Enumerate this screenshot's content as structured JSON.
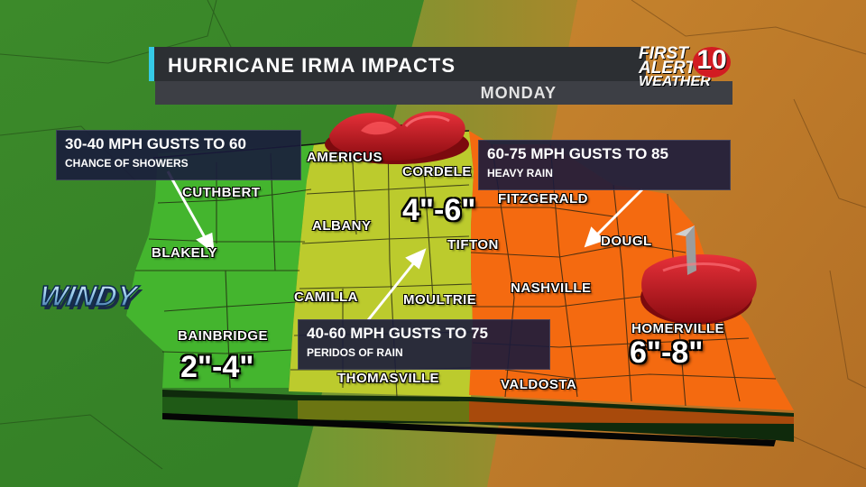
{
  "title": "HURRICANE IRMA IMPACTS",
  "subtitle": "MONDAY",
  "logo": {
    "line1": "FIRST",
    "line2": "ALERT",
    "line3": "WEATHER",
    "number": "10"
  },
  "colors": {
    "green_zone": "#3fb22c",
    "yellow_zone": "#b9c92c",
    "orange_zone": "#f36b10",
    "panel": "#1a1b3c",
    "accent": "#35c9e6",
    "hurricane_red": "#c8151b"
  },
  "cities": {
    "americus": "AMERICUS",
    "cordele": "CORDELE",
    "cuthbert": "CUTHBERT",
    "fitzgerald": "FITZGERALD",
    "albany": "ALBANY",
    "blakely": "BLAKELY",
    "tifton": "TIFTON",
    "douglas": "DOUGL",
    "nashville": "NASHVILLE",
    "camilla": "CAMILLA",
    "moultrie": "MOULTRIE",
    "bainbridge": "BAINBRIDGE",
    "homerville": "HOMERVILLE",
    "thomasville": "THOMASVILLE",
    "valdosta": "VALDOSTA"
  },
  "rain_totals": {
    "west": "2\"-4\"",
    "central": "4\"-6\"",
    "east": "6\"-8\""
  },
  "impact_boxes": {
    "west": {
      "winds": "30-40 MPH GUSTS TO 60",
      "note": "CHANCE OF SHOWERS"
    },
    "central": {
      "winds": "40-60 MPH GUSTS TO 75",
      "note": "PERIDOS OF RAIN"
    },
    "east": {
      "winds": "60-75 MPH GUSTS TO 85",
      "note": "HEAVY RAIN"
    }
  },
  "windy_label": "WINDY"
}
